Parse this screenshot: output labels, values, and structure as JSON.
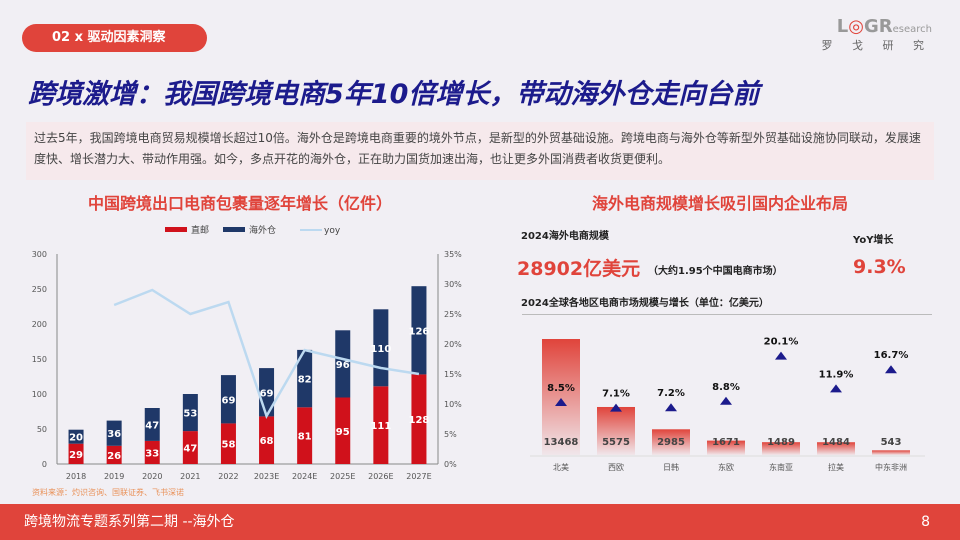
{
  "header": {
    "section_tag": "02 x 驱动因素洞察",
    "logo_text": "LOGResearch",
    "logo_sub": "罗 戈 研 究"
  },
  "title": "跨境激增：我国跨境电商5年10倍增长，带动海外仓走向台前",
  "intro": "过去5年，我国跨境电商贸易规模增长超过10倍。海外仓是跨境电商重要的境外节点，是新型的外贸基础设施。跨境电商与海外仓等新型外贸基础设施协同联动，发展速度快、增长潜力大、带动作用强。如今，多点开花的海外仓，正在助力国货加速出海，也让更多外国消费者收货更便利。",
  "source": "资料来源：灼识咨询、国联证券、飞书深诺",
  "footer": {
    "text": "跨境物流专题系列第二期 --海外仓",
    "page": "8"
  },
  "right_panel": {
    "label_scale": "2024海外电商规模",
    "scale_value": "28902亿美元",
    "scale_note": "（大约1.95个中国电商市场）",
    "label_yoy": "YoY增长",
    "yoy_value": "9.3%"
  },
  "colors": {
    "accent": "#e0443b",
    "navy": "#1f3868",
    "red": "#d0111b",
    "yoy": "#bcd9f0"
  },
  "chart_data": [
    {
      "type": "bar",
      "title": "中国跨境出口电商包裹量逐年增长（亿件）",
      "stacked": true,
      "categories": [
        "2018",
        "2019",
        "2020",
        "2021",
        "2022",
        "2023E",
        "2024E",
        "2025E",
        "2026E",
        "2027E"
      ],
      "series": [
        {
          "name": "直邮",
          "values": [
            29,
            26,
            33,
            47,
            58,
            68,
            81,
            95,
            111,
            128
          ]
        },
        {
          "name": "海外仓",
          "values": [
            20,
            36,
            47,
            53,
            69,
            69,
            82,
            96,
            110,
            126
          ]
        },
        {
          "name": "yoy",
          "type": "line",
          "axis": "right",
          "values": [
            null,
            26.5,
            29,
            25,
            27,
            8,
            19,
            17.5,
            16,
            15
          ]
        }
      ],
      "ylim": [
        0,
        300
      ],
      "yticks": [
        0,
        50,
        100,
        150,
        200,
        250,
        300
      ],
      "y2lim": [
        0,
        35
      ],
      "y2ticks": [
        "0%",
        "5%",
        "10%",
        "15%",
        "20%",
        "25%",
        "30%",
        "35%"
      ],
      "legend": "top"
    },
    {
      "type": "bar",
      "title": "海外电商规模增长吸引国内企业布局",
      "subtitle": "2024全球各地区电商市场规模与增长（单位：亿美元）",
      "categories": [
        "北美",
        "西欧",
        "日韩",
        "东欧",
        "东南亚",
        "拉美",
        "中东非洲"
      ],
      "values": [
        13468,
        5575,
        2985,
        1671,
        1489,
        1484,
        543
      ],
      "growth": [
        "8.5%",
        "7.1%",
        "7.2%",
        "8.8%",
        "20.1%",
        "11.9%",
        "16.7%"
      ]
    }
  ]
}
